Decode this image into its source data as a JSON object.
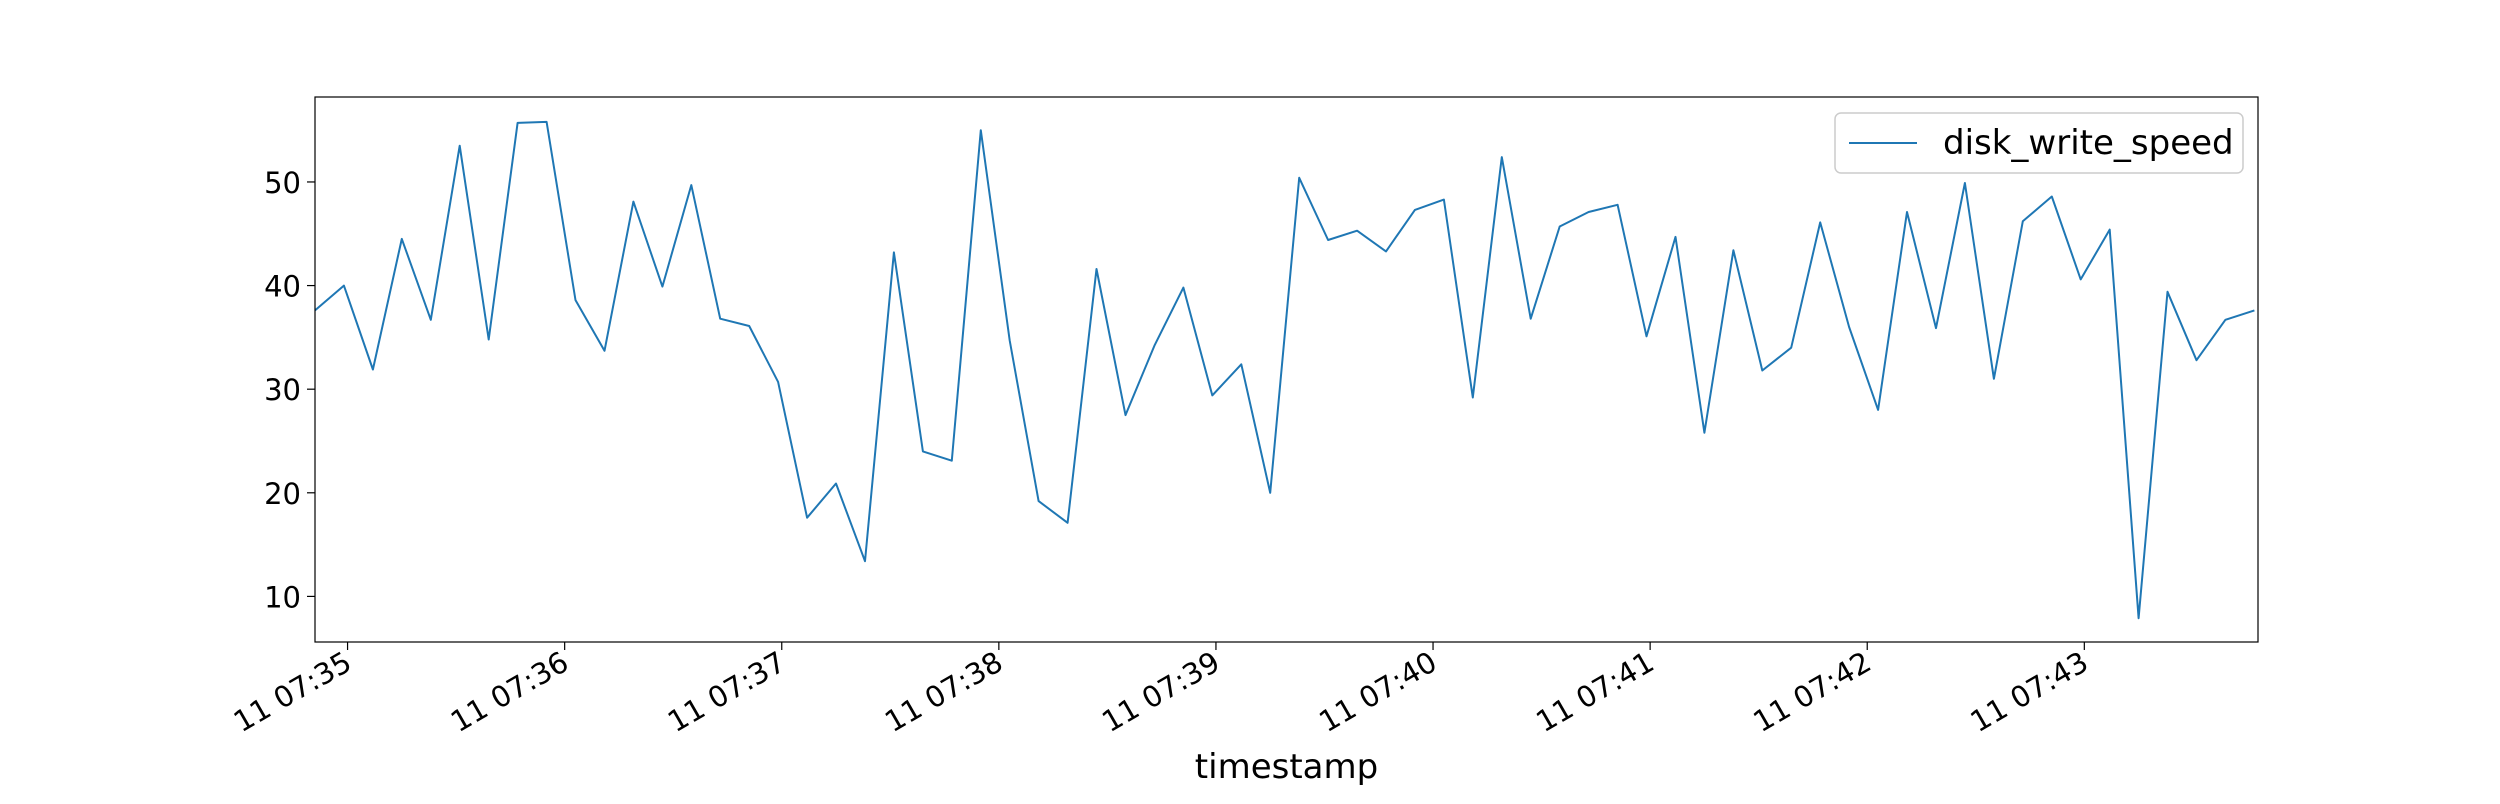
{
  "chart_data": {
    "type": "line",
    "title": "",
    "xlabel": "timestamp",
    "ylabel": "",
    "x_tick_labels": [
      "11 07:35",
      "11 07:36",
      "11 07:37",
      "11 07:38",
      "11 07:39",
      "11 07:40",
      "11 07:41",
      "11 07:42",
      "11 07:43"
    ],
    "y_ticks": [
      10,
      20,
      30,
      40,
      50
    ],
    "xlim": [
      "07:34:51",
      "07:43:48"
    ],
    "ylim": [
      5.6,
      58.2
    ],
    "grid": false,
    "legend": {
      "position": "top-right",
      "entries": [
        "disk_write_speed"
      ]
    },
    "series": [
      {
        "name": "disk_write_speed",
        "color": "#1f77b4",
        "x": [
          "07:34:51",
          "07:34:59",
          "07:35:07",
          "07:35:15",
          "07:35:23",
          "07:35:31",
          "07:35:39",
          "07:35:47",
          "07:35:55",
          "07:36:03",
          "07:36:11",
          "07:36:19",
          "07:36:27",
          "07:36:35",
          "07:36:43",
          "07:36:51",
          "07:36:59",
          "07:37:07",
          "07:37:15",
          "07:37:23",
          "07:37:31",
          "07:37:39",
          "07:37:47",
          "07:37:55",
          "07:38:03",
          "07:38:11",
          "07:38:19",
          "07:38:27",
          "07:38:35",
          "07:38:43",
          "07:38:51",
          "07:38:59",
          "07:39:07",
          "07:39:15",
          "07:39:23",
          "07:39:31",
          "07:39:39",
          "07:39:47",
          "07:39:55",
          "07:40:03",
          "07:40:11",
          "07:40:19",
          "07:40:27",
          "07:40:35",
          "07:40:43",
          "07:40:51",
          "07:40:59",
          "07:41:07",
          "07:41:15",
          "07:41:23",
          "07:41:31",
          "07:41:39",
          "07:41:47",
          "07:41:55",
          "07:42:03",
          "07:42:11",
          "07:42:19",
          "07:42:27",
          "07:42:35",
          "07:42:43",
          "07:42:51",
          "07:42:59",
          "07:43:07",
          "07:43:15",
          "07:43:23",
          "07:43:31",
          "07:43:39",
          "07:43:47"
        ],
        "values": [
          37.6,
          40.0,
          31.9,
          44.5,
          36.7,
          53.5,
          34.8,
          55.7,
          55.8,
          38.6,
          33.7,
          48.1,
          39.9,
          49.7,
          36.8,
          36.1,
          30.7,
          17.6,
          20.9,
          13.4,
          43.2,
          24.0,
          23.1,
          55.0,
          34.7,
          19.2,
          17.1,
          41.6,
          27.5,
          34.2,
          39.8,
          29.4,
          32.4,
          20.0,
          50.4,
          44.4,
          45.3,
          43.3,
          47.3,
          48.3,
          29.2,
          52.4,
          36.8,
          45.7,
          47.1,
          47.8,
          35.1,
          44.7,
          25.8,
          43.4,
          31.8,
          34.0,
          46.1,
          36.0,
          28.0,
          47.1,
          35.9,
          49.9,
          31.0,
          46.2,
          48.6,
          40.6,
          45.4,
          7.9,
          39.4,
          32.8,
          36.7,
          37.6
        ]
      }
    ]
  }
}
